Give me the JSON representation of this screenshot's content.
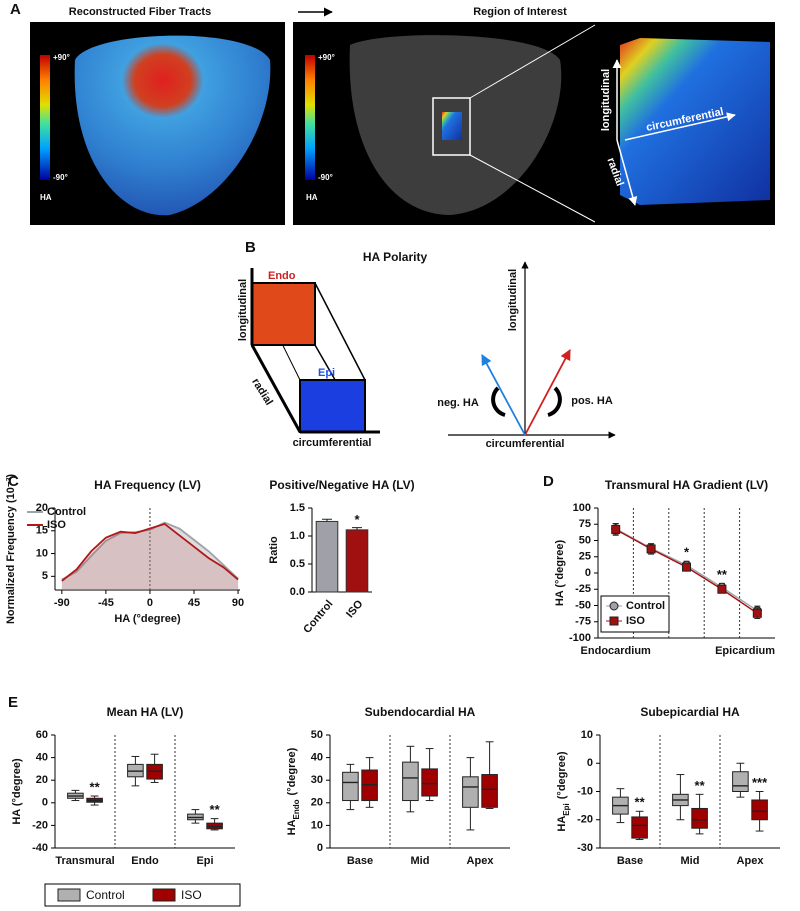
{
  "panel_labels": [
    "A",
    "B",
    "C",
    "D",
    "E"
  ],
  "panel_a": {
    "left_title": "Reconstructed Fiber Tracts",
    "right_title": "Region of Interest",
    "colorbar_top": "+90°",
    "colorbar_bottom": "-90°",
    "colorbar_label": "HA",
    "axes": [
      "longitudinal",
      "circumferential",
      "radial"
    ]
  },
  "panel_b": {
    "title": "HA Polarity",
    "endo": "Endo",
    "epi": "Epi",
    "cube_axes": [
      "longitudinal",
      "radial",
      "circumferential"
    ],
    "vector_axes": [
      "longitudinal",
      "circumferential"
    ],
    "neg": "neg. HA",
    "pos": "pos. HA"
  },
  "chart_data": [
    {
      "type": "line",
      "title": "HA Frequency (LV)",
      "x_label": "HA (°degree)",
      "y_label": "Normalized Frequency (10⁻³)",
      "x": [
        -90,
        -75,
        -60,
        -45,
        -30,
        -15,
        0,
        15,
        30,
        45,
        60,
        75,
        90
      ],
      "series": [
        {
          "name": "Control",
          "color": "#a0a0a8",
          "values": [
            4.3,
            6,
            9.5,
            12.8,
            14.5,
            14.7,
            15.2,
            16.8,
            15.5,
            13,
            10.5,
            7.5,
            4.5
          ]
        },
        {
          "name": "ISO",
          "color": "#b01818",
          "values": [
            4,
            6.5,
            10.5,
            13.5,
            14.8,
            14.5,
            15.5,
            16.5,
            14,
            11.5,
            9,
            7,
            4.3
          ]
        }
      ],
      "xlim": [
        -97,
        92
      ],
      "xticks": [
        -90,
        -45,
        0,
        45,
        90
      ],
      "ylim": [
        2,
        20
      ],
      "yticks": [
        5,
        10,
        15,
        20
      ],
      "fill": true,
      "zero_line": true,
      "legend": "upper-left"
    },
    {
      "type": "bar",
      "title": "Positive/Negative HA (LV)",
      "y_label": "Ratio",
      "categories": [
        "Control",
        "ISO"
      ],
      "values": [
        1.26,
        1.11
      ],
      "errors": [
        0.04,
        0.04
      ],
      "colors": [
        "#a0a0a8",
        "#a01010"
      ],
      "annotations": [
        null,
        "*"
      ],
      "ylim": [
        0,
        1.5
      ],
      "yticks": [
        {
          "value": 0,
          "label": "0.0"
        },
        {
          "value": 0.5,
          "label": "0.5"
        },
        {
          "value": 1,
          "label": "1.0"
        },
        {
          "value": 1.5,
          "label": "1.5"
        }
      ],
      "legend": "none"
    },
    {
      "type": "line",
      "title": "Transmural HA Gradient (LV)",
      "y_label": "HA (°degree)",
      "x_axis_labels": [
        "Endocardium",
        "Epicardium"
      ],
      "categories": [
        null,
        null,
        null,
        null,
        null
      ],
      "series": [
        {
          "name": "Control",
          "color": "#a0a0a8",
          "marker": "circle",
          "values": [
            68,
            38,
            12,
            -22,
            -58
          ],
          "errors": [
            8,
            7,
            6,
            6,
            7
          ]
        },
        {
          "name": "ISO",
          "color": "#a01010",
          "marker": "square",
          "values": [
            67,
            37,
            9,
            -25,
            -62
          ],
          "errors": [
            9,
            8,
            6,
            5,
            8
          ],
          "annotations": [
            null,
            null,
            "*",
            "**",
            null
          ]
        }
      ],
      "ylim": [
        -100,
        100
      ],
      "yticks": [
        -100,
        -75,
        -50,
        -25,
        0,
        25,
        50,
        75,
        100
      ],
      "separators": true,
      "legend": "lower-left"
    },
    {
      "type": "box",
      "title": "Mean HA (LV)",
      "y_label": [
        "HA (°degree)"
      ],
      "categories": [
        "Transmural",
        "Endo",
        "Epi"
      ],
      "series": [
        {
          "name": "Control",
          "color": "#b0b0b0",
          "boxes": [
            [
              2,
              4,
              6,
              8.5,
              11
            ],
            [
              15,
              23,
              28,
              34,
              41
            ],
            [
              -18,
              -15,
              -13,
              -10,
              -6
            ]
          ]
        },
        {
          "name": "ISO",
          "color": "#a00000",
          "boxes": [
            [
              -2,
              0.5,
              2,
              4,
              6
            ],
            [
              18,
              21,
              28,
              34,
              43
            ],
            [
              -24,
              -23,
              -21,
              -18,
              -14
            ]
          ],
          "annotations": [
            "**",
            null,
            "**"
          ]
        }
      ],
      "ylim": [
        -40,
        60
      ],
      "yticks": [
        -40,
        -20,
        0,
        20,
        40,
        60
      ],
      "separators": true,
      "legend": "bottom-outside"
    },
    {
      "type": "box",
      "title": "Subendocardial HA",
      "y_label": [
        "HA",
        "Endo",
        "(°degree)"
      ],
      "categories": [
        "Base",
        "Mid",
        "Apex"
      ],
      "series": [
        {
          "name": "Control",
          "color": "#b0b0b0",
          "boxes": [
            [
              17,
              21,
              29,
              33.5,
              37
            ],
            [
              16,
              21,
              31,
              38,
              45
            ],
            [
              8,
              18,
              27,
              31.5,
              40
            ]
          ]
        },
        {
          "name": "ISO",
          "color": "#a00000",
          "boxes": [
            [
              18,
              21,
              28,
              34.5,
              40
            ],
            [
              21,
              23,
              28.5,
              35,
              44
            ],
            [
              17.5,
              18,
              26,
              32.5,
              47
            ]
          ]
        }
      ],
      "ylim": [
        0,
        50
      ],
      "yticks": [
        0,
        10,
        20,
        30,
        40,
        50
      ],
      "separators": true,
      "legend": "none"
    },
    {
      "type": "box",
      "title": "Subepicardial HA",
      "y_label": [
        "HA",
        "Epi",
        "(°degree)"
      ],
      "categories": [
        "Base",
        "Mid",
        "Apex"
      ],
      "series": [
        {
          "name": "Control",
          "color": "#b0b0b0",
          "boxes": [
            [
              -21,
              -18,
              -15,
              -12,
              -9
            ],
            [
              -20,
              -15,
              -13,
              -11,
              -4
            ],
            [
              -12,
              -10,
              -8,
              -3,
              0
            ]
          ]
        },
        {
          "name": "ISO",
          "color": "#a00000",
          "boxes": [
            [
              -27,
              -26.5,
              -22,
              -19,
              -17
            ],
            [
              -25,
              -23,
              -20,
              -16,
              -11
            ],
            [
              -24,
              -20,
              -17,
              -13,
              -10
            ]
          ],
          "annotations": [
            "**",
            "**",
            "***"
          ]
        }
      ],
      "ylim": [
        -30,
        10
      ],
      "yticks": [
        -30,
        -20,
        -10,
        0,
        10
      ],
      "separators": true,
      "legend": "none"
    }
  ]
}
